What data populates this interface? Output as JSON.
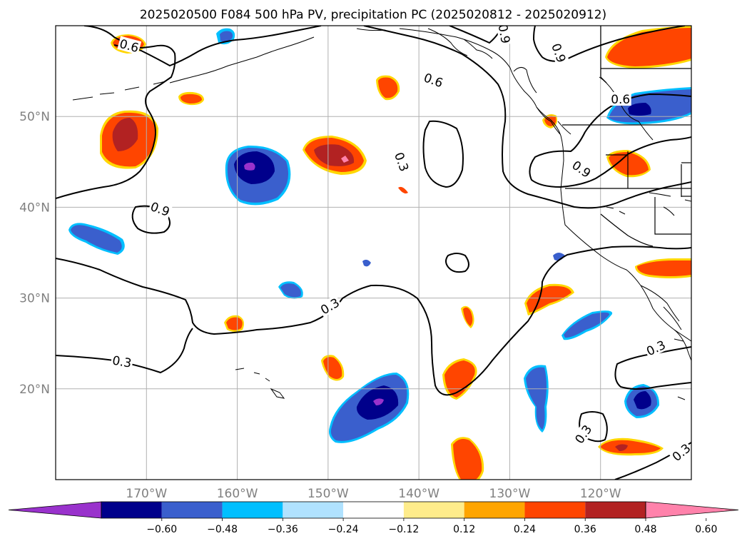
{
  "figure": {
    "title": "2025020500 F084 500 hPa PV, precipitation PC (2025020812 - 2025020912)"
  },
  "map": {
    "lon_range": [
      -180,
      -110
    ],
    "lat_range": [
      10,
      60
    ],
    "lon_ticks": [
      {
        "lon": -170,
        "label": "170°W"
      },
      {
        "lon": -160,
        "label": "160°W"
      },
      {
        "lon": -150,
        "label": "150°W"
      },
      {
        "lon": -140,
        "label": "140°W"
      },
      {
        "lon": -130,
        "label": "130°W"
      },
      {
        "lon": -120,
        "label": "120°W"
      }
    ],
    "lat_ticks": [
      {
        "lat": 50,
        "label": "50°N"
      },
      {
        "lat": 40,
        "label": "40°N"
      },
      {
        "lat": 30,
        "label": "30°N"
      },
      {
        "lat": 20,
        "label": "20°N"
      }
    ],
    "gridlines": true,
    "contour_labels": [
      {
        "text": "0.6",
        "lon": -171.9,
        "lat": 57.8,
        "rot": 15
      },
      {
        "text": "0.9",
        "lon": -124.6,
        "lat": 57.0,
        "rot": 70
      },
      {
        "text": "0.9",
        "lon": -130.6,
        "lat": 59.1,
        "rot": 80
      },
      {
        "text": "0.6",
        "lon": -138.4,
        "lat": 54.0,
        "rot": 20
      },
      {
        "text": "0.6",
        "lon": -117.8,
        "lat": 51.9,
        "rot": 0
      },
      {
        "text": "0.3",
        "lon": -141.9,
        "lat": 45.0,
        "rot": 70
      },
      {
        "text": "0.9",
        "lon": -122.1,
        "lat": 44.2,
        "rot": 35
      },
      {
        "text": "0.9",
        "lon": -168.5,
        "lat": 39.8,
        "rot": 20
      },
      {
        "text": "0.3",
        "lon": -149.8,
        "lat": 29.1,
        "rot": -30
      },
      {
        "text": "0.3",
        "lon": -172.7,
        "lat": 23.0,
        "rot": 10
      },
      {
        "text": "0.3",
        "lon": -113.9,
        "lat": 24.5,
        "rot": -25
      },
      {
        "text": "0.3",
        "lon": -121.9,
        "lat": 15.0,
        "rot": -55
      },
      {
        "text": "0.3",
        "lon": -111.1,
        "lat": 13.0,
        "rot": -40
      }
    ]
  },
  "colorbar": {
    "colors": [
      "#9932cc",
      "#00008b",
      "#3a5fcd",
      "#00bfff",
      "#b0e2ff",
      "#ffffff",
      "#ffec8b",
      "#ffa500",
      "#ff4500",
      "#b22222",
      "#ff82ab"
    ],
    "ticks": [
      "−0.60",
      "−0.48",
      "−0.36",
      "−0.24",
      "−0.12",
      "0.12",
      "0.24",
      "0.36",
      "0.48",
      "0.60"
    ],
    "extend": "both"
  }
}
